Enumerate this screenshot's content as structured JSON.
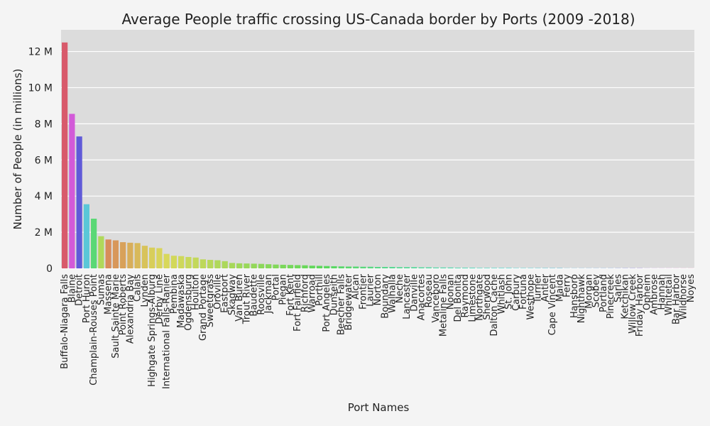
{
  "chart_data": {
    "type": "bar",
    "title": "Average People traffic crossing US-Canada border by Ports (2009 -2018)",
    "xlabel": "Port Names",
    "ylabel": "Number of People (in millions)",
    "ylim": [
      0,
      13.2
    ],
    "yticks": [
      0,
      2,
      4,
      6,
      8,
      10,
      12
    ],
    "ytick_labels": [
      "0",
      "2 M",
      "4 M",
      "6 M",
      "8 M",
      "10 M",
      "12 M"
    ],
    "grid": true,
    "legend": "none",
    "categories": [
      "Buffalo-Niagara Falls",
      "Blaine",
      "Detroit",
      "Port Huron",
      "Champlain-Rouses Point",
      "Sumas",
      "Massena",
      "Sault Sainte Marie",
      "Point Roberts",
      "Alexandria Bay",
      "Calais",
      "Lynden",
      "Highgate Springs-Alburg",
      "Derby Line",
      "International Falls-Ranier",
      "Pembina",
      "Madawaska",
      "Ogdensburg",
      "Houlton",
      "Grand Portage",
      "Sweetgrass",
      "Oroville",
      "Eastport",
      "Skagway",
      "Van Buren",
      "Trout River",
      "Baudette",
      "Roosville",
      "Jackman",
      "Portal",
      "Piegan",
      "Fort Kent",
      "Fort Fairfield",
      "Richford",
      "Warroad",
      "Porthill",
      "Port Angeles",
      "Dunseith",
      "Beecher Falls",
      "Bridgewater",
      "Alcan",
      "Frontier",
      "Laurier",
      "Norton",
      "Boundary",
      "Walhalla",
      "Neche",
      "Lancaster",
      "Danville",
      "Anacortes",
      "Roseau",
      "Vanceboro",
      "Metaline Falls",
      "Noonan",
      "Del Bonita",
      "Raymond",
      "Limestone",
      "Northgate",
      "Sherwood",
      "Dalton Cache",
      "Whitlash",
      "St. John",
      "Carbury",
      "Fortuna",
      "Westhope",
      "Turner",
      "Antler",
      "Cape Vincent",
      "Maida",
      "Ferry",
      "Hansboro",
      "Nighthawk",
      "Morgan",
      "Scobey",
      "Portland",
      "Pinecreek",
      "Sarles",
      "Ketchikan",
      "Willow Creek",
      "Friday Harbor",
      "Opheim",
      "Ambrose",
      "Hannah",
      "Whitetail",
      "Bar Harbor",
      "Wildhorse",
      "Noyes"
    ],
    "values": [
      12.5,
      8.55,
      7.3,
      3.55,
      2.75,
      1.78,
      1.6,
      1.55,
      1.45,
      1.42,
      1.4,
      1.25,
      1.15,
      1.12,
      0.8,
      0.7,
      0.68,
      0.63,
      0.6,
      0.5,
      0.47,
      0.45,
      0.4,
      0.3,
      0.28,
      0.27,
      0.26,
      0.25,
      0.23,
      0.21,
      0.2,
      0.19,
      0.18,
      0.17,
      0.15,
      0.14,
      0.13,
      0.12,
      0.11,
      0.1,
      0.1,
      0.09,
      0.09,
      0.08,
      0.08,
      0.08,
      0.07,
      0.07,
      0.07,
      0.06,
      0.06,
      0.05,
      0.05,
      0.05,
      0.04,
      0.04,
      0.04,
      0.03,
      0.03,
      0.03,
      0.03,
      0.03,
      0.02,
      0.02,
      0.02,
      0.02,
      0.02,
      0.02,
      0.02,
      0.01,
      0.01,
      0.01,
      0.01,
      0.01,
      0.01,
      0.01,
      0.01,
      0.01,
      0.01,
      0.01,
      0.005,
      0.005,
      0.005,
      0.005,
      0.005,
      0.005,
      0.005
    ]
  }
}
